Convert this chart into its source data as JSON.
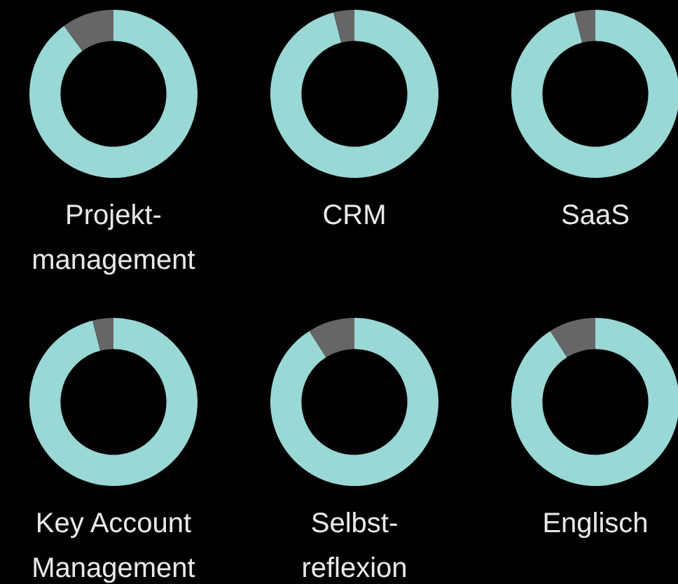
{
  "chart_data": [
    {
      "type": "donut",
      "title": "Projekt-management",
      "categories": [
        null,
        null
      ],
      "values": [
        90,
        10
      ],
      "colors": [
        "#99d8d4",
        "#666666"
      ]
    },
    {
      "type": "donut",
      "title": "CRM",
      "categories": [
        null,
        null
      ],
      "values": [
        96,
        4
      ],
      "colors": [
        "#99d8d4",
        "#666666"
      ]
    },
    {
      "type": "donut",
      "title": "SaaS",
      "categories": [
        null,
        null
      ],
      "values": [
        96,
        4
      ],
      "colors": [
        "#99d8d4",
        "#666666"
      ]
    },
    {
      "type": "donut",
      "title": "Key Account Management",
      "categories": [
        null,
        null
      ],
      "values": [
        96,
        4
      ],
      "colors": [
        "#99d8d4",
        "#666666"
      ]
    },
    {
      "type": "donut",
      "title": "Selbst-reflexion",
      "categories": [
        null,
        null
      ],
      "values": [
        91,
        9
      ],
      "colors": [
        "#99d8d4",
        "#666666"
      ]
    },
    {
      "type": "donut",
      "title": "Englisch",
      "categories": [
        null,
        null
      ],
      "values": [
        91,
        9
      ],
      "colors": [
        "#99d8d4",
        "#666666"
      ]
    }
  ]
}
